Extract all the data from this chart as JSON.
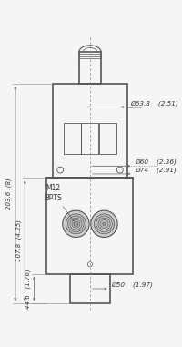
{
  "bg_color": "#f5f5f5",
  "line_color": "#888888",
  "dark_line": "#555555",
  "fig_width": 2.0,
  "fig_height": 3.81,
  "dpi": 100,
  "annotations": {
    "dim_63_8": "Ø63.8    (2.51)",
    "dim_60": "Ø60    (2.36)",
    "dim_74": "Ø74    (2.91)",
    "dim_50": "Ø50    (1.97)",
    "dim_203_6": "203.6  (8)",
    "dim_107_8": "107.8  (4.25)",
    "dim_44_6": "44.6   (1.76)",
    "m12": "M12\n8PTS"
  }
}
